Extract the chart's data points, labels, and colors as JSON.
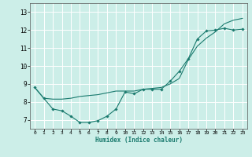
{
  "xlabel": "Humidex (Indice chaleur)",
  "bg_color": "#cceee8",
  "grid_color": "#ffffff",
  "line_color": "#1a7a6e",
  "xlim": [
    -0.5,
    23.5
  ],
  "ylim": [
    6.5,
    13.5
  ],
  "yticks": [
    7,
    8,
    9,
    10,
    11,
    12,
    13
  ],
  "xticks": [
    0,
    1,
    2,
    3,
    4,
    5,
    6,
    7,
    8,
    9,
    10,
    11,
    12,
    13,
    14,
    15,
    16,
    17,
    18,
    19,
    20,
    21,
    22,
    23
  ],
  "series1_x": [
    0,
    1,
    2,
    3,
    4,
    5,
    6,
    7,
    8,
    9,
    10,
    11,
    12,
    13,
    14,
    15,
    16,
    17,
    18,
    19,
    20,
    21,
    22,
    23
  ],
  "series1_y": [
    8.8,
    8.2,
    7.6,
    7.5,
    7.2,
    6.85,
    6.85,
    6.95,
    7.2,
    7.6,
    8.55,
    8.45,
    8.7,
    8.7,
    8.7,
    9.15,
    9.7,
    10.4,
    11.5,
    11.95,
    12.0,
    12.1,
    12.0,
    12.05
  ],
  "series2_x": [
    0,
    1,
    2,
    3,
    4,
    5,
    6,
    7,
    8,
    9,
    10,
    11,
    12,
    13,
    14,
    15,
    16,
    17,
    18,
    19,
    20,
    21,
    22,
    23
  ],
  "series2_y": [
    8.8,
    8.2,
    8.15,
    8.15,
    8.2,
    8.3,
    8.35,
    8.4,
    8.5,
    8.6,
    8.6,
    8.6,
    8.7,
    8.75,
    8.8,
    9.0,
    9.3,
    10.35,
    11.1,
    11.55,
    11.9,
    12.35,
    12.55,
    12.65
  ]
}
